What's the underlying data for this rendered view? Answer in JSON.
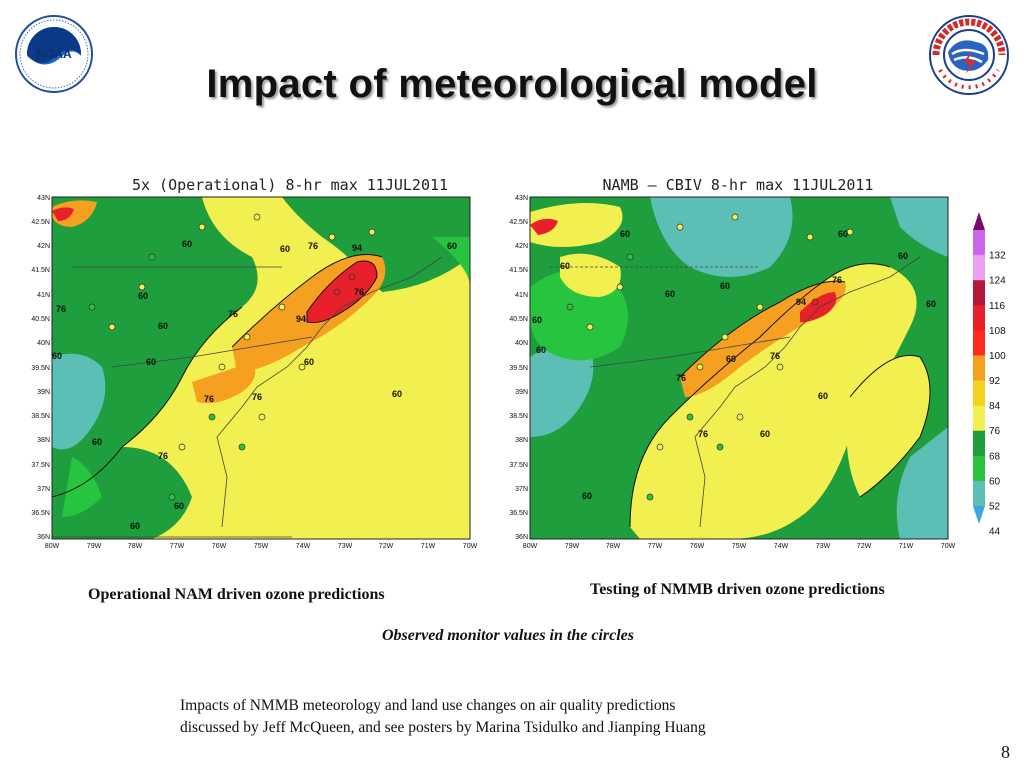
{
  "slide": {
    "title": "Impact of meteorological model",
    "page_number": "8"
  },
  "logos": {
    "left": {
      "name": "NOAA",
      "ring_text": "NATIONAL OCEANIC AND ATMOSPHERIC ADMINISTRATION · U.S. DEPARTMENT OF COMMERCE"
    },
    "right": {
      "name": "NATIONAL WEATHER SERVICE"
    }
  },
  "maps": [
    {
      "title": "5x (Operational) 8-hr max 11JUL2011",
      "caption": "Operational NAM driven ozone predictions",
      "lat_labels": [
        "43N",
        "42.5N",
        "42N",
        "41.5N",
        "41N",
        "40.5N",
        "40N",
        "39.5N",
        "39N",
        "38.5N",
        "38N",
        "37.5N",
        "37N",
        "36.5N",
        "36N"
      ],
      "lon_labels": [
        "80W",
        "79W",
        "78W",
        "77W",
        "76W",
        "75W",
        "74W",
        "73W",
        "72W",
        "71W",
        "70W"
      ],
      "contour_labels": [
        "60",
        "60",
        "60",
        "60",
        "60",
        "60",
        "60",
        "60",
        "60",
        "60",
        "60",
        "60",
        "76",
        "76",
        "76",
        "76",
        "76",
        "76",
        "76",
        "94",
        "94"
      ]
    },
    {
      "title": "NAMB – CBIV 8-hr max 11JUL2011",
      "caption": "Testing of NMMB driven ozone predictions",
      "lat_labels": [
        "43N",
        "42.5N",
        "42N",
        "41.5N",
        "41N",
        "40.5N",
        "40N",
        "39.5N",
        "39N",
        "38.5N",
        "38N",
        "37.5N",
        "37N",
        "36.5N",
        "36N"
      ],
      "lon_labels": [
        "80W",
        "79W",
        "78W",
        "77W",
        "76W",
        "75W",
        "74W",
        "73W",
        "72W",
        "71W",
        "70W"
      ],
      "contour_labels": [
        "60",
        "60",
        "60",
        "60",
        "60",
        "60",
        "60",
        "60",
        "60",
        "60",
        "60",
        "60",
        "60",
        "76",
        "76",
        "76",
        "76",
        "94"
      ]
    }
  ],
  "colorbar": {
    "labels": [
      "132",
      "124",
      "116",
      "108",
      "100",
      "92",
      "84",
      "76",
      "68",
      "60",
      "52",
      "44"
    ],
    "colors": [
      "#7a0b6b",
      "#cc66ee",
      "#e8a0f0",
      "#b4193c",
      "#e8202a",
      "#ff2a1e",
      "#f5a020",
      "#f5d21e",
      "#f2ef50",
      "#1e9e3c",
      "#27c440",
      "#5cbfb5",
      "#3aa6e6"
    ]
  },
  "legend_note": "Observed monitor values in the circles",
  "footnote": {
    "line1": "Impacts of NMMB meteorology and land use changes on air quality predictions",
    "line2": "discussed by Jeff McQueen, and see posters by Marina Tsidulko and Jianping Huang"
  }
}
